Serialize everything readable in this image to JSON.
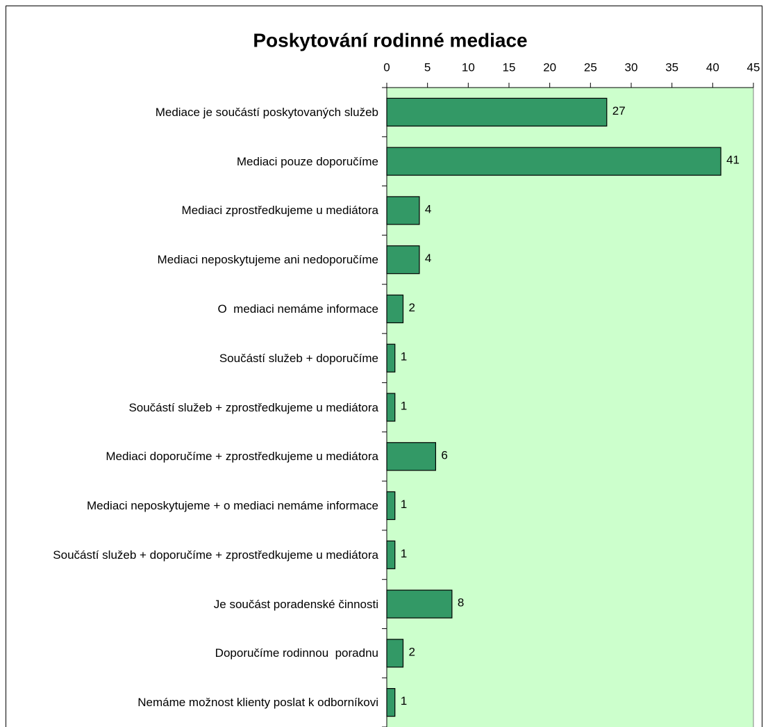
{
  "chart_data": {
    "type": "bar",
    "orientation": "horizontal",
    "title": "Poskytování rodinné mediace",
    "categories": [
      "Mediace je součástí poskytovaných služeb",
      "Mediaci pouze doporučíme",
      "Mediaci zprostředkujeme u mediátora",
      "Mediaci neposkytujeme ani nedoporučíme",
      "O  mediaci nemáme informace",
      "Součástí služeb + doporučíme",
      "Součástí služeb + zprostředkujeme u mediátora",
      "Mediaci doporučíme + zprostředkujeme u mediátora",
      "Mediaci neposkytujeme + o mediaci nemáme informace",
      "Součástí služeb + doporučíme + zprostředkujeme u mediátora",
      "Je součást poradenské činnosti",
      "Doporučíme rodinnou  poradnu",
      "Nemáme možnost klienty poslat k odborníkovi"
    ],
    "values": [
      27,
      41,
      4,
      4,
      2,
      1,
      1,
      6,
      1,
      1,
      8,
      2,
      1
    ],
    "color": "#339966",
    "plot_background": "#ccffcc",
    "xlim": [
      0,
      45
    ],
    "xticks": [
      0,
      5,
      10,
      15,
      20,
      25,
      30,
      35,
      40,
      45
    ],
    "grid": false
  }
}
